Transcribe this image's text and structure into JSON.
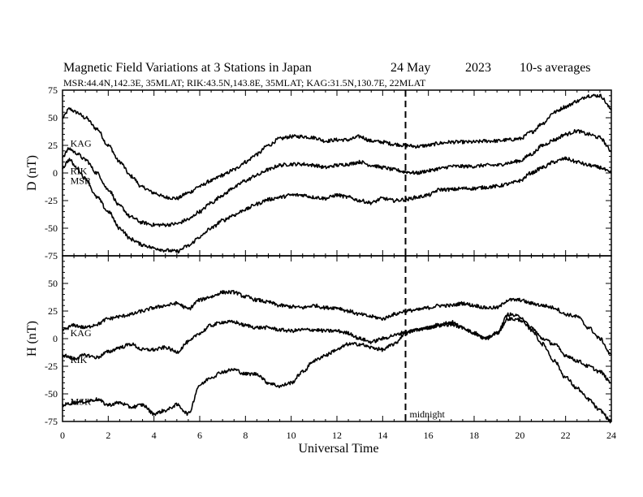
{
  "chart_data": {
    "type": "line",
    "title": "Magnetic Field Variations at 3 Stations in Japan",
    "date": "24 May",
    "year": "2023",
    "averaging": "10-s averages",
    "subtitle": "MSR:44.4N,142.3E, 35MLAT;  RIK:43.5N,143.8E, 35MLAT;  KAG:31.5N,130.7E, 22MLAT",
    "xlabel": "Universal Time",
    "xlim": [
      0,
      24
    ],
    "xticks": [
      0,
      2,
      4,
      6,
      8,
      10,
      12,
      14,
      16,
      18,
      20,
      22,
      24
    ],
    "midnight": {
      "x": 15,
      "label": "midnight"
    },
    "panels": [
      {
        "ylabel": "D (nT)",
        "ylim": [
          -75,
          75
        ],
        "yticks": [
          75,
          50,
          25,
          0,
          -25,
          -50,
          -75
        ],
        "series": [
          {
            "name": "KAG",
            "label_x": 0.2,
            "label_y": 27,
            "x": [
              0,
              0.3,
              0.6,
              1,
              1.5,
              2,
              2.5,
              3,
              3.5,
              4,
              4.5,
              5,
              5.5,
              6,
              6.5,
              7,
              7.5,
              8,
              8.5,
              9,
              9.5,
              10,
              10.5,
              11,
              11.5,
              12,
              12.5,
              13,
              13.5,
              14,
              14.5,
              15,
              15.5,
              16,
              16.5,
              17,
              17.5,
              18,
              18.5,
              19,
              19.5,
              20,
              20.5,
              21,
              21.5,
              22,
              22.5,
              23,
              23.5,
              24
            ],
            "y": [
              50,
              58,
              55,
              50,
              40,
              25,
              10,
              -3,
              -13,
              -18,
              -22,
              -23,
              -18,
              -12,
              -7,
              -2,
              3,
              10,
              17,
              25,
              31,
              33,
              33,
              32,
              29,
              30,
              30,
              33,
              29,
              28,
              26,
              25,
              24,
              25,
              27,
              28,
              28,
              28,
              29,
              29,
              30,
              31,
              37,
              45,
              55,
              60,
              65,
              70,
              70,
              58
            ]
          },
          {
            "name": "RIK",
            "label_x": 0.2,
            "label_y": 2,
            "x": [
              0,
              0.3,
              0.6,
              1,
              1.5,
              2,
              2.5,
              3,
              3.5,
              4,
              4.5,
              5,
              5.5,
              6,
              6.5,
              7,
              7.5,
              8,
              8.5,
              9,
              9.5,
              10,
              10.5,
              11,
              11.5,
              12,
              12.5,
              13,
              13.5,
              14,
              14.5,
              15,
              15.5,
              16,
              16.5,
              17,
              17.5,
              18,
              18.5,
              19,
              19.5,
              20,
              20.5,
              21,
              21.5,
              22,
              22.5,
              23,
              23.5,
              24
            ],
            "y": [
              15,
              22,
              18,
              12,
              0,
              -15,
              -30,
              -40,
              -45,
              -47,
              -47,
              -46,
              -42,
              -35,
              -27,
              -20,
              -13,
              -7,
              -2,
              3,
              7,
              8,
              8,
              7,
              5,
              7,
              8,
              10,
              7,
              5,
              3,
              1,
              0,
              2,
              4,
              6,
              6,
              6,
              7,
              7,
              9,
              11,
              17,
              25,
              30,
              35,
              38,
              35,
              32,
              20
            ]
          },
          {
            "name": "MSR",
            "label_x": 0.2,
            "label_y": -7,
            "x": [
              0,
              0.3,
              0.6,
              1,
              1.5,
              2,
              2.5,
              3,
              3.5,
              4,
              4.5,
              5,
              5.5,
              6,
              6.5,
              7,
              7.5,
              8,
              8.5,
              9,
              9.5,
              10,
              10.5,
              11,
              11.5,
              12,
              12.5,
              13,
              13.5,
              14,
              14.5,
              15,
              15.5,
              16,
              16.5,
              17,
              17.5,
              18,
              18.5,
              19,
              19.5,
              20,
              20.5,
              21,
              21.5,
              22,
              22.5,
              23,
              23.5,
              24
            ],
            "y": [
              5,
              12,
              5,
              -5,
              -22,
              -35,
              -50,
              -60,
              -65,
              -68,
              -70,
              -71,
              -66,
              -58,
              -50,
              -43,
              -38,
              -33,
              -28,
              -24,
              -22,
              -20,
              -20,
              -22,
              -23,
              -20,
              -22,
              -25,
              -27,
              -23,
              -25,
              -24,
              -22,
              -20,
              -15,
              -15,
              -14,
              -14,
              -13,
              -12,
              -10,
              -7,
              0,
              5,
              10,
              13,
              10,
              7,
              5,
              0
            ]
          }
        ]
      },
      {
        "ylabel": "H (nT)",
        "ylim": [
          -75,
          75
        ],
        "yticks": [
          50,
          25,
          0,
          -25,
          -50,
          -75
        ],
        "series": [
          {
            "name": "KAG",
            "label_x": 0.2,
            "label_y": 5,
            "x": [
              0,
              0.5,
              1,
              1.5,
              2,
              2.5,
              3,
              3.5,
              4,
              4.5,
              5,
              5.5,
              6,
              6.5,
              7,
              7.5,
              8,
              8.5,
              9,
              9.5,
              10,
              10.5,
              11,
              11.5,
              12,
              12.5,
              13,
              13.5,
              14,
              14.5,
              15,
              15.5,
              16,
              16.5,
              17,
              17.5,
              18,
              18.5,
              19,
              19.5,
              20,
              20.5,
              21,
              21.5,
              22,
              22.5,
              23,
              23.5,
              24
            ],
            "y": [
              8,
              12,
              10,
              13,
              18,
              20,
              22,
              25,
              28,
              30,
              32,
              27,
              35,
              38,
              42,
              42,
              38,
              35,
              33,
              30,
              29,
              28,
              30,
              28,
              28,
              25,
              22,
              20,
              18,
              22,
              25,
              26,
              28,
              30,
              30,
              32,
              30,
              28,
              28,
              35,
              35,
              32,
              30,
              28,
              22,
              20,
              10,
              0,
              -15
            ]
          },
          {
            "name": "RIK",
            "label_x": 0.2,
            "label_y": -19,
            "x": [
              0,
              0.5,
              1,
              1.5,
              2,
              2.5,
              3,
              3.5,
              4,
              4.5,
              5,
              5.5,
              6,
              6.5,
              7,
              7.5,
              8,
              8.5,
              9,
              9.5,
              10,
              10.5,
              11,
              11.5,
              12,
              12.5,
              13,
              13.5,
              14,
              14.5,
              15,
              15.5,
              16,
              16.5,
              17,
              17.5,
              18,
              18.5,
              19,
              19.5,
              20,
              20.5,
              21,
              21.5,
              22,
              22.5,
              23,
              23.5,
              24
            ],
            "y": [
              -15,
              -18,
              -15,
              -17,
              -12,
              -8,
              -5,
              -10,
              -10,
              -8,
              -12,
              -3,
              5,
              12,
              15,
              15,
              12,
              10,
              10,
              8,
              7,
              8,
              8,
              7,
              7,
              5,
              0,
              -3,
              0,
              3,
              6,
              8,
              10,
              13,
              15,
              10,
              5,
              0,
              5,
              22,
              20,
              10,
              0,
              -5,
              -15,
              -20,
              -25,
              -30,
              -40
            ]
          },
          {
            "name": "MSR",
            "label_x": 0.2,
            "label_y": -57,
            "x": [
              0,
              0.5,
              1,
              1.5,
              2,
              2.5,
              3,
              3.5,
              4,
              4.5,
              5,
              5.5,
              6,
              6.5,
              7,
              7.5,
              8,
              8.5,
              9,
              9.5,
              10,
              10.5,
              11,
              11.5,
              12,
              12.5,
              13,
              13.5,
              14,
              14.5,
              15,
              15.5,
              16,
              16.5,
              17,
              17.5,
              18,
              18.5,
              19,
              19.5,
              20,
              20.5,
              21,
              21.5,
              22,
              22.5,
              23,
              23.5,
              24
            ],
            "y": [
              -60,
              -58,
              -57,
              -55,
              -60,
              -58,
              -62,
              -60,
              -68,
              -65,
              -60,
              -68,
              -42,
              -35,
              -30,
              -28,
              -32,
              -32,
              -40,
              -43,
              -40,
              -30,
              -20,
              -15,
              -10,
              -5,
              -5,
              -8,
              -10,
              -5,
              5,
              8,
              10,
              12,
              13,
              10,
              5,
              0,
              5,
              18,
              17,
              8,
              -5,
              -20,
              -35,
              -45,
              -55,
              -65,
              -75
            ]
          }
        ]
      }
    ]
  }
}
